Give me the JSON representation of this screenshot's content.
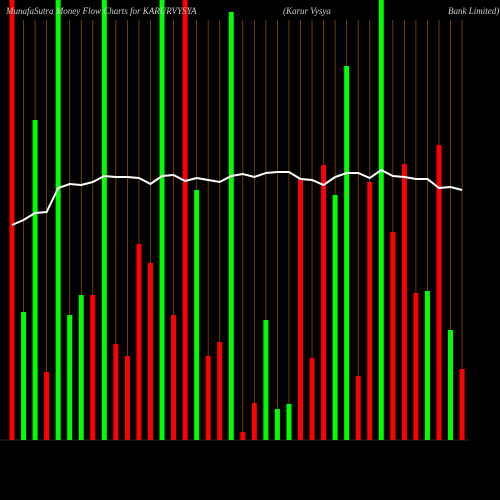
{
  "chart_data": {
    "type": "bar",
    "title": "MunafaSutra  Money Flow  Charts for KARURVYSYA",
    "subtitle": "(Karur Vysya",
    "subtitle2": "Bank Limited)",
    "values": [
      440,
      128,
      320,
      68,
      440,
      125,
      145,
      145,
      440,
      96,
      84,
      196,
      177,
      440,
      125,
      440,
      250,
      84,
      98,
      428,
      8,
      37,
      120,
      31,
      36,
      262,
      82,
      275,
      245,
      374,
      64,
      258,
      440,
      208,
      276,
      147,
      149,
      295,
      110,
      71
    ],
    "colors": [
      "#ff0000",
      "#00ff00",
      "#00ff00",
      "#ff0000",
      "#00ff00",
      "#00ff00",
      "#00ff00",
      "#ff0000",
      "#00ff00",
      "#ff0000",
      "#ff0000",
      "#ff0000",
      "#ff0000",
      "#00ff00",
      "#ff0000",
      "#ff0000",
      "#00ff00",
      "#ff0000",
      "#ff0000",
      "#00ff00",
      "#ff0000",
      "#ff0000",
      "#00ff00",
      "#00ff00",
      "#00ff00",
      "#ff0000",
      "#ff0000",
      "#ff0000",
      "#00ff00",
      "#00ff00",
      "#ff0000",
      "#ff0000",
      "#00ff00",
      "#ff0000",
      "#ff0000",
      "#ff0000",
      "#00ff00",
      "#ff0000",
      "#00ff00",
      "#ff0000"
    ],
    "line_values": [
      215,
      220,
      227,
      228,
      252,
      256,
      255,
      258,
      264,
      263,
      263,
      262,
      256,
      264,
      265,
      259,
      262,
      260,
      258,
      264,
      266,
      263,
      267,
      268,
      268,
      261,
      260,
      255,
      263,
      267,
      267,
      262,
      270,
      264,
      263,
      261,
      261,
      252,
      253,
      250
    ],
    "line_color": "#ffffff",
    "ylim": [
      0,
      440
    ],
    "grid": true,
    "grid_color": "#8a4a00"
  }
}
